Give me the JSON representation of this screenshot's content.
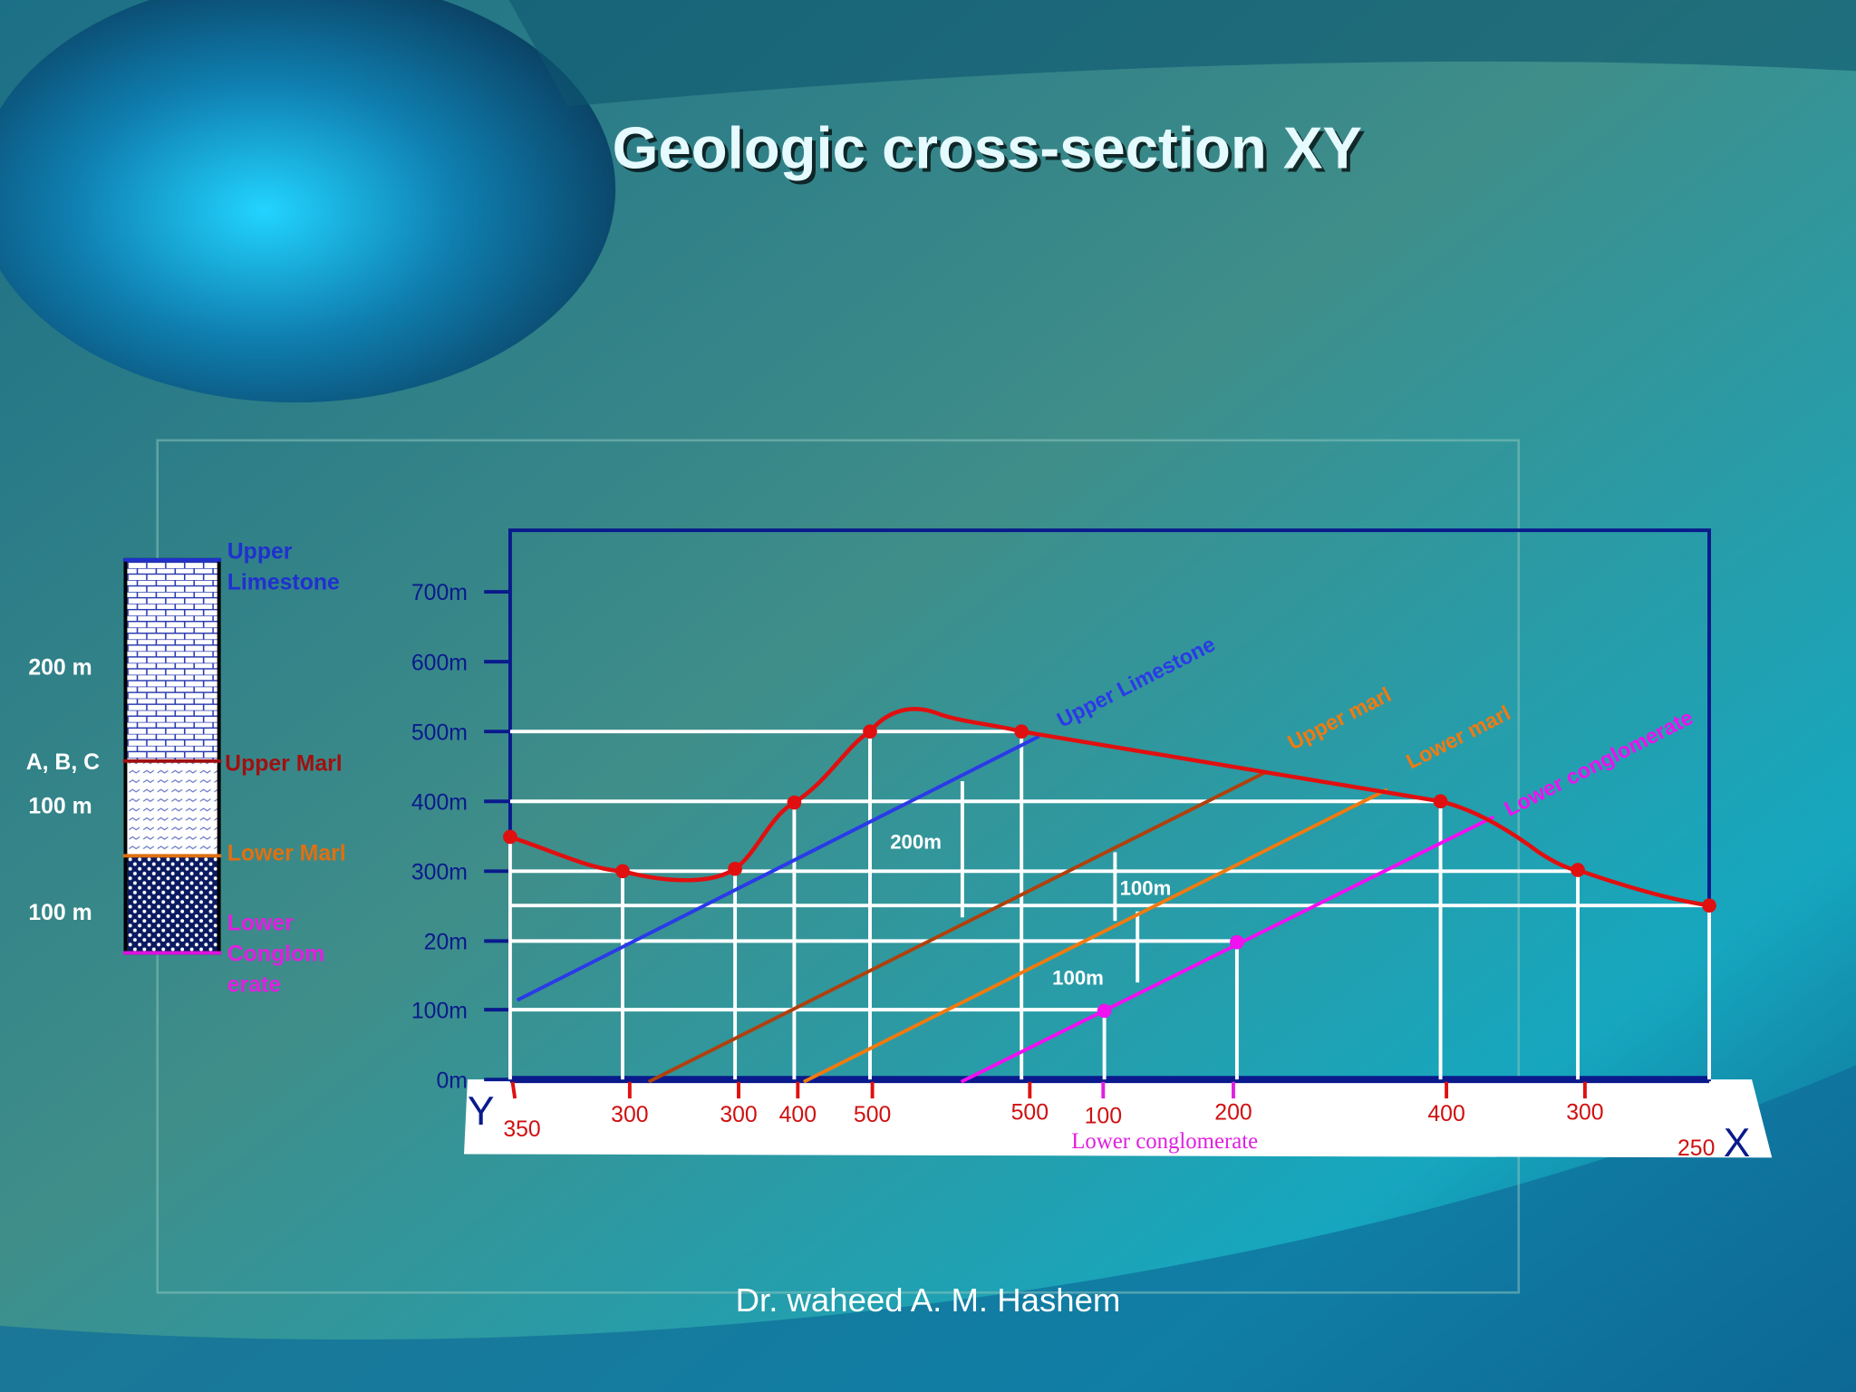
{
  "title": "Geologic cross-section XY",
  "column": {
    "units": [
      {
        "lines": [
          "Upper",
          "Limestone"
        ]
      },
      {
        "lines": [
          "Upper Marl"
        ]
      },
      {
        "lines": [
          "Lower Marl"
        ]
      },
      {
        "lines": [
          "Lower",
          "Conglom",
          "erate"
        ]
      }
    ],
    "side_labels": [
      "200 m",
      "A, B, C",
      "100 m",
      "100 m"
    ]
  },
  "y_axis_labels": [
    "700m",
    "600m",
    "500m",
    "400m",
    "300m",
    "20m",
    "100m",
    "0m"
  ],
  "elevation_labels": [
    "350",
    "300",
    "300",
    "400",
    "500",
    "500",
    "100",
    "200",
    "400",
    "300",
    "250"
  ],
  "layer_labels": [
    "Upper Limestone",
    "Upper marl",
    "Lower marl",
    "Lower conglomerate"
  ],
  "thickness_labels": [
    "200m",
    "100m",
    "100m"
  ],
  "section_ends": {
    "start": "Y",
    "end": "X"
  },
  "bottom_note": "Lower conglomerate",
  "footer": "Dr. waheed A. M. Hashem"
}
